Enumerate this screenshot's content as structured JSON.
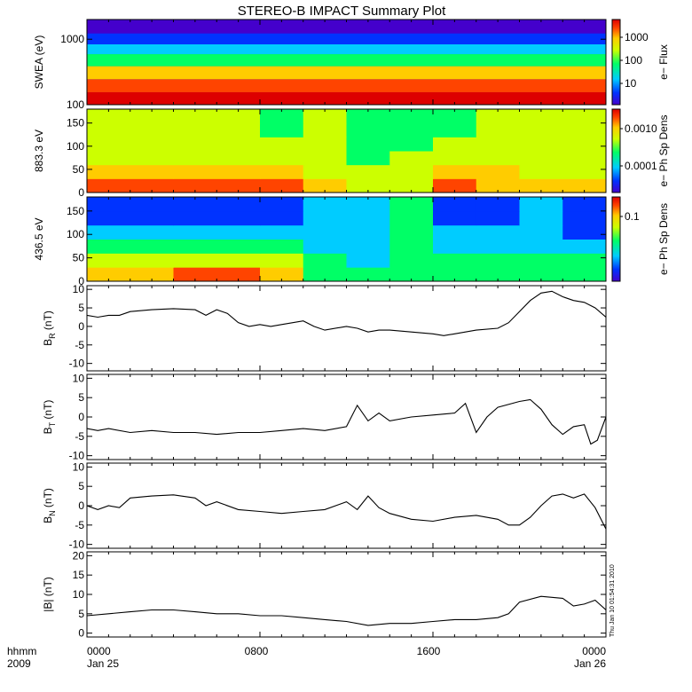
{
  "title": "STEREO-B IMPACT Summary Plot",
  "footer": {
    "time_label": "hhmm",
    "year_label": "2009",
    "ticks": [
      "0000",
      "0800",
      "1600",
      "0000"
    ],
    "dates": [
      "Jan 25",
      "Jan 26"
    ],
    "stamp": "Thu Jan 10 01:54:31 2010"
  },
  "colors": {
    "line": "#000000",
    "colorbar": [
      "#4400cc",
      "#0033ff",
      "#00ccff",
      "#00ff66",
      "#ccff00",
      "#ffcc00",
      "#ff4400",
      "#dd0000"
    ]
  },
  "chart_data": [
    {
      "type": "heatmap",
      "panel": "swea",
      "ylabel": "SWEA (eV)",
      "yscale": "log",
      "ylim": [
        100,
        2000
      ],
      "yticks": [
        "100",
        "1000"
      ],
      "xlim": [
        "2009-01-25 00:00",
        "2009-01-26 00:00"
      ],
      "colorbar": {
        "label": "e− Flux",
        "scale": "log",
        "ticks": [
          "1000",
          "100",
          "10"
        ]
      },
      "energy_bands_ev": [
        120,
        200,
        300,
        500,
        700,
        1000,
        1500
      ],
      "band_intensity": [
        7,
        6,
        5,
        3,
        2,
        1,
        0
      ]
    },
    {
      "type": "heatmap",
      "panel": "pad-883",
      "ylabel": "883.3 eV",
      "ylim": [
        0,
        180
      ],
      "yticks": [
        "0",
        "50",
        "100",
        "150"
      ],
      "xlim": [
        "2009-01-25 00:00",
        "2009-01-26 00:00"
      ],
      "colorbar": {
        "label": "e− Ph Sp Dens",
        "scale": "log",
        "ticks": [
          "0.0010",
          "0.0001"
        ]
      },
      "pitch_angle_deg": [
        15,
        45,
        75,
        105,
        135,
        165
      ],
      "hours": [
        0,
        4,
        8,
        10,
        12,
        14,
        16,
        18,
        20,
        22,
        24
      ],
      "intensity": [
        [
          6,
          6,
          6,
          5,
          4,
          4,
          6,
          5,
          5,
          5,
          5
        ],
        [
          5,
          5,
          5,
          4,
          4,
          4,
          5,
          5,
          4,
          4,
          4
        ],
        [
          4,
          4,
          4,
          4,
          3,
          4,
          4,
          4,
          4,
          4,
          4
        ],
        [
          4,
          4,
          4,
          4,
          3,
          3,
          4,
          4,
          4,
          4,
          4
        ],
        [
          4,
          4,
          3,
          4,
          3,
          3,
          3,
          4,
          4,
          4,
          5
        ],
        [
          4,
          4,
          3,
          4,
          3,
          3,
          3,
          4,
          4,
          4,
          5
        ]
      ]
    },
    {
      "type": "heatmap",
      "panel": "pad-436",
      "ylabel": "436.5 eV",
      "ylim": [
        0,
        180
      ],
      "yticks": [
        "0",
        "50",
        "100",
        "150"
      ],
      "xlim": [
        "2009-01-25 00:00",
        "2009-01-26 00:00"
      ],
      "colorbar": {
        "label": "e− Ph Sp Dens",
        "scale": "log",
        "ticks": [
          "0.1"
        ]
      },
      "pitch_angle_deg": [
        15,
        45,
        75,
        105,
        135,
        165
      ],
      "hours": [
        0,
        4,
        8,
        10,
        12,
        14,
        16,
        18,
        20,
        22,
        24
      ],
      "intensity": [
        [
          5,
          6,
          5,
          3,
          3,
          3,
          3,
          3,
          3,
          3,
          3
        ],
        [
          4,
          4,
          4,
          3,
          2,
          3,
          3,
          3,
          3,
          3,
          3
        ],
        [
          3,
          3,
          3,
          2,
          2,
          3,
          2,
          2,
          2,
          2,
          2
        ],
        [
          2,
          2,
          2,
          2,
          2,
          3,
          2,
          2,
          2,
          1,
          2
        ],
        [
          1,
          1,
          1,
          2,
          2,
          3,
          1,
          1,
          2,
          1,
          2
        ],
        [
          1,
          1,
          1,
          2,
          2,
          3,
          1,
          1,
          2,
          1,
          2
        ]
      ]
    },
    {
      "type": "line",
      "panel": "br",
      "ylabel": "B",
      "ylabel_sub": "R",
      "ylabel_unit": " (nT)",
      "ylim": [
        -12,
        11
      ],
      "yticks": [
        "-10",
        "-5",
        "0",
        "5",
        "10"
      ],
      "xlim": [
        0,
        24
      ],
      "x": [
        0,
        0.5,
        1,
        1.5,
        2,
        3,
        4,
        5,
        5.5,
        6,
        6.5,
        7,
        7.5,
        8,
        8.5,
        9,
        10,
        10.5,
        11,
        12,
        12.5,
        13,
        13.5,
        14,
        15,
        16,
        16.5,
        17,
        17.5,
        18,
        19,
        19.5,
        20,
        20.5,
        21,
        21.5,
        22,
        22.5,
        23,
        23.5,
        24
      ],
      "y": [
        3,
        2.5,
        3,
        3,
        4,
        4.5,
        4.8,
        4.5,
        3,
        4.5,
        3.5,
        1,
        0,
        0.5,
        0,
        0.5,
        1.5,
        0,
        -1,
        0,
        -0.5,
        -1.5,
        -1,
        -1,
        -1.5,
        -2,
        -2.5,
        -2,
        -1.5,
        -1,
        -0.5,
        1,
        4,
        7,
        9,
        9.5,
        8,
        7,
        6.5,
        5,
        2.5
      ]
    },
    {
      "type": "line",
      "panel": "bt",
      "ylabel": "B",
      "ylabel_sub": "T",
      "ylabel_unit": " (nT)",
      "ylim": [
        -11,
        11
      ],
      "yticks": [
        "-10",
        "-5",
        "0",
        "5",
        "10"
      ],
      "xlim": [
        0,
        24
      ],
      "x": [
        0,
        0.5,
        1,
        2,
        3,
        4,
        5,
        6,
        7,
        8,
        9,
        10,
        11,
        12,
        12.5,
        13,
        13.5,
        14,
        15,
        16,
        17,
        17.5,
        18,
        18.5,
        19,
        20,
        20.5,
        21,
        21.5,
        22,
        22.5,
        23,
        23.3,
        23.6,
        24
      ],
      "y": [
        -3,
        -3.5,
        -3,
        -4,
        -3.5,
        -4,
        -4,
        -4.5,
        -4,
        -4,
        -3.5,
        -3,
        -3.5,
        -2.5,
        3,
        -1,
        1,
        -1,
        0,
        0.5,
        1,
        3.5,
        -4,
        0,
        2.5,
        4,
        4.5,
        2,
        -2,
        -4.5,
        -2.5,
        -2,
        -7,
        -6,
        0
      ]
    },
    {
      "type": "line",
      "panel": "bn",
      "ylabel": "B",
      "ylabel_sub": "N",
      "ylabel_unit": " (nT)",
      "ylim": [
        -11,
        11
      ],
      "yticks": [
        "-10",
        "-5",
        "0",
        "5",
        "10"
      ],
      "xlim": [
        0,
        24
      ],
      "x": [
        0,
        0.5,
        1,
        1.5,
        2,
        3,
        4,
        5,
        5.5,
        6,
        7,
        8,
        9,
        10,
        11,
        12,
        12.5,
        13,
        13.5,
        14,
        15,
        16,
        17,
        18,
        19,
        19.5,
        20,
        20.5,
        21,
        21.5,
        22,
        22.5,
        23,
        23.5,
        24
      ],
      "y": [
        0,
        -1,
        0,
        -0.5,
        2,
        2.5,
        2.8,
        2,
        0,
        1,
        -1,
        -1.5,
        -2,
        -1.5,
        -1,
        1,
        -1,
        2.5,
        -0.5,
        -2,
        -3.5,
        -4,
        -3,
        -2.5,
        -3.5,
        -5,
        -5,
        -3,
        0,
        2.5,
        3,
        2,
        3,
        -0.5,
        -6
      ]
    },
    {
      "type": "line",
      "panel": "btot",
      "ylabel": "|B| (nT)",
      "ylim": [
        -1,
        21
      ],
      "yticks": [
        "0",
        "5",
        "10",
        "15",
        "20"
      ],
      "xlim": [
        0,
        24
      ],
      "x": [
        0,
        1,
        2,
        3,
        4,
        5,
        6,
        7,
        8,
        9,
        10,
        11,
        12,
        13,
        14,
        15,
        16,
        17,
        18,
        19,
        19.5,
        20,
        21,
        22,
        22.5,
        23,
        23.5,
        24
      ],
      "y": [
        4.5,
        5,
        5.5,
        6,
        6,
        5.5,
        5,
        5,
        4.5,
        4.5,
        4,
        3.5,
        3,
        2,
        2.5,
        2.5,
        3,
        3.5,
        3.5,
        4,
        5,
        8,
        9.5,
        9,
        7,
        7.5,
        8.5,
        6
      ]
    }
  ]
}
